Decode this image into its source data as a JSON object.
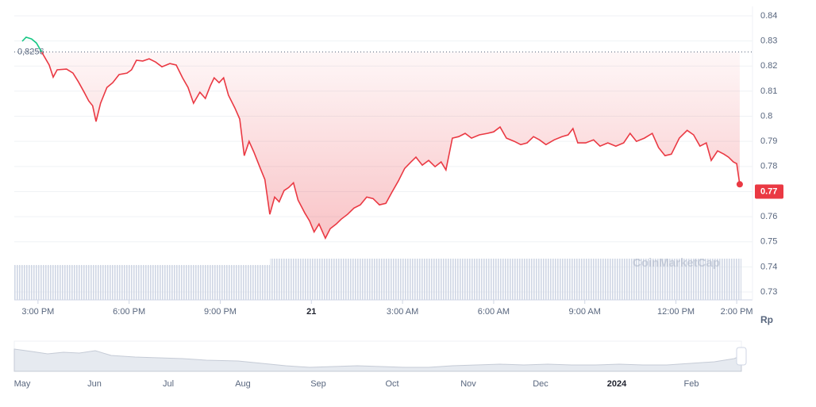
{
  "chart_data": {
    "type": "line",
    "baseline": {
      "value": 0.8256,
      "label": "0,8256"
    },
    "current_price": 0.77,
    "y_unit": "Rp",
    "watermark": "CoinMarketCap",
    "up_color": "#16c784",
    "series": [
      {
        "color": "#ea3943",
        "x": [
          -0.52,
          -0.39,
          -0.21,
          -0.05,
          0.37,
          0.5,
          0.63,
          0.94,
          1.15,
          1.33,
          1.52,
          1.67,
          1.8,
          1.91,
          2.06,
          2.27,
          2.46,
          2.67,
          2.93,
          3.08,
          3.24,
          3.45,
          3.66,
          3.87,
          4.08,
          4.34,
          4.55,
          4.76,
          4.94,
          5.12,
          5.33,
          5.51,
          5.67,
          5.8,
          5.96,
          6.11,
          6.27,
          6.48,
          6.64,
          6.79,
          6.95,
          7.11,
          7.32,
          7.47,
          7.63,
          7.79,
          7.94,
          8.1,
          8.25,
          8.41,
          8.56,
          8.78,
          8.94,
          9.09,
          9.25,
          9.46,
          9.62,
          9.82,
          9.98,
          10.19,
          10.4,
          10.61,
          10.82,
          11.03,
          11.24,
          11.45,
          11.65,
          11.86,
          12.07,
          12.28,
          12.44,
          12.65,
          12.86,
          13.07,
          13.27,
          13.43,
          13.64,
          13.85,
          14.06,
          14.27,
          14.53,
          14.79,
          15.0,
          15.21,
          15.42,
          15.68,
          15.89,
          16.1,
          16.31,
          16.51,
          16.72,
          16.99,
          17.25,
          17.45,
          17.61,
          17.77,
          18.03,
          18.29,
          18.5,
          18.76,
          19.02,
          19.28,
          19.49,
          19.7,
          19.96,
          20.22,
          20.43,
          20.64,
          20.85,
          21.11,
          21.37,
          21.58,
          21.79,
          22.0,
          22.16,
          22.37,
          22.58,
          22.73,
          22.89,
          23.0,
          23.1
        ],
        "values": [
          0.8299,
          0.8315,
          0.8308,
          0.8292,
          0.8204,
          0.8156,
          0.8185,
          0.8188,
          0.8172,
          0.8137,
          0.8096,
          0.8061,
          0.8042,
          0.7979,
          0.8052,
          0.8115,
          0.8134,
          0.8166,
          0.8172,
          0.8185,
          0.8223,
          0.822,
          0.8229,
          0.8216,
          0.8197,
          0.821,
          0.8204,
          0.8153,
          0.8115,
          0.8052,
          0.8096,
          0.8071,
          0.8121,
          0.8153,
          0.8134,
          0.8153,
          0.8084,
          0.8033,
          0.7989,
          0.7843,
          0.79,
          0.7856,
          0.7792,
          0.7748,
          0.7609,
          0.7678,
          0.7659,
          0.7704,
          0.7716,
          0.7735,
          0.7666,
          0.7615,
          0.7583,
          0.7539,
          0.7571,
          0.7514,
          0.7552,
          0.7571,
          0.759,
          0.7609,
          0.7634,
          0.7647,
          0.7678,
          0.7672,
          0.7647,
          0.7653,
          0.7697,
          0.7742,
          0.7792,
          0.7818,
          0.7837,
          0.7805,
          0.7824,
          0.7799,
          0.7818,
          0.7786,
          0.7913,
          0.7919,
          0.7932,
          0.7913,
          0.7926,
          0.7932,
          0.7938,
          0.7957,
          0.7913,
          0.79,
          0.7887,
          0.7894,
          0.7919,
          0.7906,
          0.7887,
          0.7906,
          0.7919,
          0.7926,
          0.7951,
          0.7894,
          0.7894,
          0.7906,
          0.7881,
          0.7894,
          0.7881,
          0.7894,
          0.7932,
          0.79,
          0.7913,
          0.7932,
          0.7875,
          0.7843,
          0.7849,
          0.7913,
          0.7944,
          0.7926,
          0.7881,
          0.7894,
          0.7824,
          0.7862,
          0.7849,
          0.7837,
          0.7818,
          0.7811,
          0.7729
        ]
      }
    ],
    "xlim": [
      -0.78,
      23.52
    ],
    "xticks": [
      {
        "value": 0,
        "label": "3:00 PM"
      },
      {
        "value": 3,
        "label": "6:00 PM"
      },
      {
        "value": 6,
        "label": "9:00 PM"
      },
      {
        "value": 9,
        "label": "21"
      },
      {
        "value": 12,
        "label": "3:00 AM"
      },
      {
        "value": 15,
        "label": "6:00 AM"
      },
      {
        "value": 18,
        "label": "9:00 AM"
      },
      {
        "value": 21,
        "label": "12:00 PM"
      },
      {
        "value": 23,
        "label": "2:00 PM"
      }
    ],
    "ylim": [
      0.73,
      0.84
    ],
    "yticks": [
      0.73,
      0.74,
      0.75,
      0.76,
      0.77,
      0.78,
      0.79,
      0.8,
      0.81,
      0.82,
      0.83,
      0.84
    ],
    "grid": true,
    "navigator_labels": [
      "May",
      "Jun",
      "Jul",
      "Aug",
      "Sep",
      "Oct",
      "Nov",
      "Dec",
      "2024",
      "Feb"
    ]
  }
}
